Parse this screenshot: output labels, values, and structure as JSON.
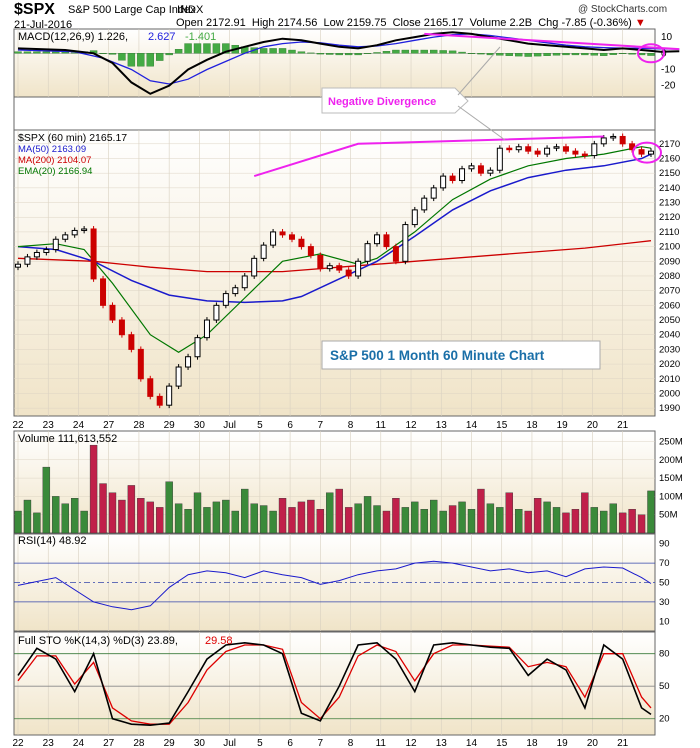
{
  "header": {
    "ticker": "$SPX",
    "name": "S&P 500 Large Cap Index",
    "exchange": "INDX",
    "date": "21-Jul-2016",
    "open_label": "Open",
    "open": "2172.91",
    "high_label": "High",
    "high": "2174.56",
    "low_label": "Low",
    "low": "2159.75",
    "close_label": "Close",
    "close": "2165.17",
    "volume_label": "Volume",
    "volume": "2.2B",
    "chg_label": "Chg",
    "chg": "-7.85 (-0.36%)",
    "watermark": "@ StockCharts.com"
  },
  "colors": {
    "panel_bg_top": "#ffffff",
    "panel_bg_bottom": "#f0e4c8",
    "up_candle": "#000000",
    "down_candle": "#cc0000",
    "ma50": "#1a1acc",
    "ma200": "#cc0000",
    "ema20": "#007700",
    "macd_line": "#000000",
    "macd_signal": "#2020dd",
    "macd_hist": "#44aa44",
    "divergence": "#ee22ee",
    "vol_up": "#3a8a3a",
    "vol_down": "#c0204a",
    "rsi_line": "#1a1acc",
    "sto_k": "#000000",
    "sto_d": "#dd0000"
  },
  "annotations": {
    "divergence_label": "Negative Divergence",
    "chart_title": "S&P 500 1 Month 60 Minute Chart"
  },
  "chart_data": [
    {
      "type": "line",
      "panel": "macd",
      "legend": [
        {
          "text": "MACD(12,26,9) 1.226,",
          "color": "#000000"
        },
        {
          "text": "2.627",
          "color": "#2020dd"
        },
        {
          "text": "-1.401",
          "color": "#44aa44"
        }
      ],
      "yticks": [
        10,
        0,
        -10,
        -20
      ],
      "ylim": [
        -27,
        15
      ],
      "macd_points": [
        [
          0,
          3
        ],
        [
          5,
          2
        ],
        [
          8,
          0
        ],
        [
          10,
          -6
        ],
        [
          12,
          -18
        ],
        [
          14,
          -25
        ],
        [
          16,
          -20
        ],
        [
          18,
          -10
        ],
        [
          20,
          -4
        ],
        [
          22,
          1
        ],
        [
          24,
          4
        ],
        [
          26,
          7
        ],
        [
          28,
          9
        ],
        [
          30,
          8
        ],
        [
          32,
          6
        ],
        [
          34,
          4
        ],
        [
          36,
          3
        ],
        [
          38,
          5
        ],
        [
          40,
          8
        ],
        [
          42,
          10
        ],
        [
          44,
          12
        ],
        [
          46,
          13
        ],
        [
          48,
          12
        ],
        [
          50,
          10
        ],
        [
          52,
          8
        ],
        [
          54,
          6
        ],
        [
          56,
          5
        ],
        [
          58,
          4
        ],
        [
          60,
          3
        ],
        [
          62,
          2
        ],
        [
          64,
          3
        ],
        [
          66,
          2
        ],
        [
          68,
          1
        ],
        [
          70,
          1.2
        ]
      ],
      "signal_points": [
        [
          0,
          2
        ],
        [
          6,
          1
        ],
        [
          9,
          -3
        ],
        [
          12,
          -10
        ],
        [
          14,
          -17
        ],
        [
          16,
          -19
        ],
        [
          18,
          -16
        ],
        [
          20,
          -10
        ],
        [
          22,
          -5
        ],
        [
          24,
          0
        ],
        [
          26,
          4
        ],
        [
          28,
          6
        ],
        [
          30,
          7
        ],
        [
          32,
          6.5
        ],
        [
          34,
          5
        ],
        [
          36,
          4
        ],
        [
          38,
          4.5
        ],
        [
          40,
          6
        ],
        [
          42,
          8
        ],
        [
          44,
          10
        ],
        [
          46,
          11.5
        ],
        [
          48,
          12
        ],
        [
          50,
          11
        ],
        [
          52,
          9.5
        ],
        [
          54,
          8
        ],
        [
          56,
          6.5
        ],
        [
          58,
          5
        ],
        [
          60,
          4
        ],
        [
          62,
          3.5
        ],
        [
          64,
          3.2
        ],
        [
          66,
          3
        ],
        [
          68,
          2.8
        ],
        [
          70,
          2.6
        ]
      ],
      "divergence_line": [
        [
          43,
          12
        ],
        [
          70,
          2.6
        ]
      ]
    },
    {
      "type": "candlestick",
      "panel": "price",
      "legend": [
        {
          "text": "$SPX (60 min) 2165.17",
          "color": "#000000"
        },
        {
          "text": "MA(50) 2163.09",
          "color": "#1a1acc"
        },
        {
          "text": "MA(200) 2104.07",
          "color": "#cc0000"
        },
        {
          "text": "EMA(20) 2166.94",
          "color": "#007700"
        }
      ],
      "yticks": [
        2170,
        2160,
        2150,
        2140,
        2130,
        2120,
        2110,
        2100,
        2090,
        2080,
        2070,
        2060,
        2050,
        2040,
        2030,
        2020,
        2010,
        2000,
        1990
      ],
      "ylim": [
        1986,
        2176
      ],
      "x_dates": [
        "22",
        "23",
        "24",
        "27",
        "28",
        "29",
        "30",
        "Jul",
        "5",
        "6",
        "7",
        "8",
        "11",
        "12",
        "13",
        "14",
        "15",
        "18",
        "19",
        "20",
        "21"
      ],
      "closes": [
        2088,
        2093,
        2096,
        2098,
        2105,
        2108,
        2111,
        2112,
        2078,
        2060,
        2050,
        2040,
        2030,
        2010,
        1998,
        1992,
        2005,
        2018,
        2025,
        2038,
        2050,
        2060,
        2068,
        2072,
        2080,
        2092,
        2101,
        2110,
        2108,
        2105,
        2100,
        2094,
        2085,
        2087,
        2084,
        2080,
        2090,
        2102,
        2108,
        2100,
        2090,
        2115,
        2125,
        2133,
        2140,
        2148,
        2145,
        2153,
        2155,
        2150,
        2152,
        2167,
        2166,
        2168,
        2165,
        2163,
        2167,
        2168,
        2165,
        2163,
        2162,
        2170,
        2174,
        2175,
        2170,
        2166,
        2163,
        2165
      ],
      "ma50_points": [
        [
          0,
          2100
        ],
        [
          4,
          2098
        ],
        [
          8,
          2090
        ],
        [
          12,
          2077
        ],
        [
          16,
          2067
        ],
        [
          20,
          2063
        ],
        [
          24,
          2062
        ],
        [
          28,
          2063
        ],
        [
          30,
          2066
        ],
        [
          34,
          2078
        ],
        [
          38,
          2090
        ],
        [
          42,
          2107
        ],
        [
          46,
          2125
        ],
        [
          50,
          2138
        ],
        [
          54,
          2147
        ],
        [
          58,
          2152
        ],
        [
          62,
          2155
        ],
        [
          66,
          2160
        ],
        [
          67,
          2163
        ]
      ],
      "ma200_points": [
        [
          0,
          2092
        ],
        [
          8,
          2090
        ],
        [
          14,
          2086
        ],
        [
          20,
          2083
        ],
        [
          28,
          2083
        ],
        [
          36,
          2087
        ],
        [
          44,
          2091
        ],
        [
          52,
          2095
        ],
        [
          60,
          2099
        ],
        [
          67,
          2104
        ]
      ],
      "ema20_points": [
        [
          0,
          2100
        ],
        [
          4,
          2102
        ],
        [
          7,
          2098
        ],
        [
          10,
          2075
        ],
        [
          14,
          2040
        ],
        [
          17,
          2028
        ],
        [
          20,
          2040
        ],
        [
          24,
          2065
        ],
        [
          28,
          2090
        ],
        [
          32,
          2095
        ],
        [
          36,
          2088
        ],
        [
          38,
          2092
        ],
        [
          42,
          2110
        ],
        [
          46,
          2132
        ],
        [
          50,
          2146
        ],
        [
          54,
          2155
        ],
        [
          58,
          2160
        ],
        [
          62,
          2163
        ],
        [
          66,
          2168
        ],
        [
          67,
          2167
        ]
      ],
      "divergence_line": [
        [
          25,
          2148
        ],
        [
          36,
          2170
        ],
        [
          62,
          2175
        ]
      ]
    },
    {
      "type": "bar",
      "panel": "volume",
      "legend": [
        {
          "text": "Volume 111,613,552",
          "color": "#000000"
        }
      ],
      "yticks": [
        "250M",
        "200M",
        "150M",
        "100M",
        "50M"
      ],
      "ytick_values": [
        250,
        200,
        150,
        100,
        50
      ],
      "ylim": [
        0,
        265
      ],
      "values": [
        60,
        90,
        55,
        180,
        100,
        80,
        95,
        60,
        240,
        135,
        110,
        90,
        130,
        95,
        85,
        70,
        140,
        80,
        65,
        110,
        70,
        85,
        90,
        60,
        120,
        80,
        75,
        60,
        95,
        70,
        85,
        90,
        65,
        110,
        120,
        70,
        80,
        100,
        75,
        60,
        95,
        70,
        85,
        65,
        90,
        60,
        75,
        85,
        65,
        120,
        80,
        70,
        110,
        65,
        60,
        95,
        85,
        70,
        55,
        65,
        110,
        70,
        60,
        80,
        55,
        65,
        50,
        115
      ]
    },
    {
      "type": "line",
      "panel": "rsi",
      "legend": [
        {
          "text": "RSI(14) 48.92",
          "color": "#000000"
        }
      ],
      "yticks": [
        90,
        70,
        50,
        30,
        10
      ],
      "ylim": [
        0,
        100
      ],
      "points": [
        [
          0,
          47
        ],
        [
          4,
          55
        ],
        [
          8,
          30
        ],
        [
          10,
          25
        ],
        [
          12,
          22
        ],
        [
          14,
          26
        ],
        [
          16,
          45
        ],
        [
          18,
          58
        ],
        [
          20,
          62
        ],
        [
          22,
          60
        ],
        [
          24,
          55
        ],
        [
          26,
          62
        ],
        [
          28,
          58
        ],
        [
          30,
          55
        ],
        [
          32,
          48
        ],
        [
          34,
          52
        ],
        [
          36,
          58
        ],
        [
          38,
          62
        ],
        [
          40,
          64
        ],
        [
          42,
          70
        ],
        [
          44,
          72
        ],
        [
          46,
          70
        ],
        [
          48,
          66
        ],
        [
          50,
          62
        ],
        [
          52,
          64
        ],
        [
          54,
          60
        ],
        [
          56,
          62
        ],
        [
          58,
          56
        ],
        [
          60,
          64
        ],
        [
          62,
          66
        ],
        [
          64,
          65
        ],
        [
          66,
          55
        ],
        [
          67,
          49
        ]
      ]
    },
    {
      "type": "line",
      "panel": "stochastic",
      "legend": [
        {
          "text": "Full STO %K(14,3) %D(3) 23.89,",
          "color": "#000000"
        },
        {
          "text": "29.58",
          "color": "#dd0000"
        }
      ],
      "yticks": [
        80,
        50,
        20
      ],
      "ylim": [
        5,
        100
      ],
      "k_points": [
        [
          0,
          60
        ],
        [
          2,
          85
        ],
        [
          4,
          75
        ],
        [
          6,
          45
        ],
        [
          8,
          80
        ],
        [
          10,
          20
        ],
        [
          12,
          15
        ],
        [
          14,
          14
        ],
        [
          16,
          16
        ],
        [
          18,
          45
        ],
        [
          20,
          75
        ],
        [
          22,
          88
        ],
        [
          24,
          90
        ],
        [
          26,
          88
        ],
        [
          28,
          80
        ],
        [
          30,
          25
        ],
        [
          32,
          18
        ],
        [
          34,
          50
        ],
        [
          36,
          88
        ],
        [
          38,
          90
        ],
        [
          40,
          75
        ],
        [
          42,
          45
        ],
        [
          44,
          88
        ],
        [
          46,
          90
        ],
        [
          48,
          88
        ],
        [
          50,
          86
        ],
        [
          52,
          85
        ],
        [
          54,
          60
        ],
        [
          56,
          75
        ],
        [
          58,
          65
        ],
        [
          60,
          30
        ],
        [
          62,
          88
        ],
        [
          64,
          75
        ],
        [
          66,
          30
        ],
        [
          67,
          24
        ]
      ],
      "d_points": [
        [
          0,
          55
        ],
        [
          2,
          78
        ],
        [
          4,
          78
        ],
        [
          6,
          52
        ],
        [
          8,
          72
        ],
        [
          10,
          30
        ],
        [
          12,
          18
        ],
        [
          14,
          15
        ],
        [
          16,
          15
        ],
        [
          18,
          35
        ],
        [
          20,
          65
        ],
        [
          22,
          82
        ],
        [
          24,
          88
        ],
        [
          26,
          88
        ],
        [
          28,
          84
        ],
        [
          30,
          35
        ],
        [
          32,
          20
        ],
        [
          34,
          40
        ],
        [
          36,
          78
        ],
        [
          38,
          88
        ],
        [
          40,
          82
        ],
        [
          42,
          55
        ],
        [
          44,
          80
        ],
        [
          46,
          88
        ],
        [
          48,
          88
        ],
        [
          50,
          87
        ],
        [
          52,
          86
        ],
        [
          54,
          68
        ],
        [
          56,
          72
        ],
        [
          58,
          68
        ],
        [
          60,
          40
        ],
        [
          62,
          80
        ],
        [
          64,
          80
        ],
        [
          66,
          40
        ],
        [
          67,
          30
        ]
      ]
    }
  ]
}
